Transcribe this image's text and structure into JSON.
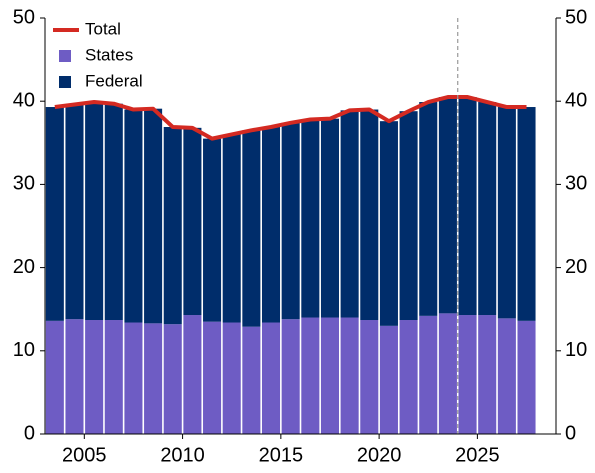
{
  "chart_data": {
    "type": "stacked_bar_line",
    "x": [
      2003,
      2004,
      2005,
      2006,
      2007,
      2008,
      2009,
      2010,
      2011,
      2012,
      2013,
      2014,
      2015,
      2016,
      2017,
      2018,
      2019,
      2020,
      2021,
      2022,
      2023,
      2024,
      2025,
      2026,
      2027
    ],
    "series": [
      {
        "name": "Total",
        "color": "#d42a22",
        "kind": "line",
        "values": [
          39.3,
          39.6,
          39.9,
          39.7,
          39.0,
          39.1,
          36.9,
          36.8,
          35.5,
          36.0,
          36.5,
          36.9,
          37.4,
          37.8,
          37.9,
          38.9,
          39.0,
          37.6,
          38.8,
          39.9,
          40.5,
          40.5,
          39.9,
          39.3,
          39.3
        ]
      },
      {
        "name": "States",
        "color": "#6e5cc4",
        "kind": "bar",
        "values": [
          13.6,
          13.8,
          13.7,
          13.7,
          13.4,
          13.3,
          13.2,
          14.3,
          13.5,
          13.4,
          12.9,
          13.4,
          13.8,
          14.0,
          14.0,
          14.0,
          13.7,
          13.0,
          13.7,
          14.2,
          14.5,
          14.3,
          14.3,
          13.9,
          13.6
        ]
      },
      {
        "name": "Federal",
        "color": "#002d6b",
        "kind": "bar",
        "values": [
          25.7,
          25.8,
          26.2,
          26.0,
          25.6,
          25.8,
          23.7,
          22.5,
          22.0,
          22.6,
          23.6,
          23.5,
          23.6,
          23.8,
          23.9,
          24.9,
          25.3,
          24.6,
          25.1,
          25.7,
          26.0,
          26.2,
          25.6,
          25.4,
          25.7
        ]
      }
    ],
    "xlim": [
      2003,
      2029
    ],
    "xticks": [
      2005,
      2010,
      2015,
      2020,
      2025
    ],
    "ylim": [
      0,
      50
    ],
    "yticks": [
      0,
      10,
      20,
      30,
      40,
      50
    ],
    "y2lim": [
      0,
      50
    ],
    "y2ticks": [
      0,
      10,
      20,
      30,
      40,
      50
    ],
    "vline": 2024,
    "legend": "upper left",
    "grid": false
  }
}
